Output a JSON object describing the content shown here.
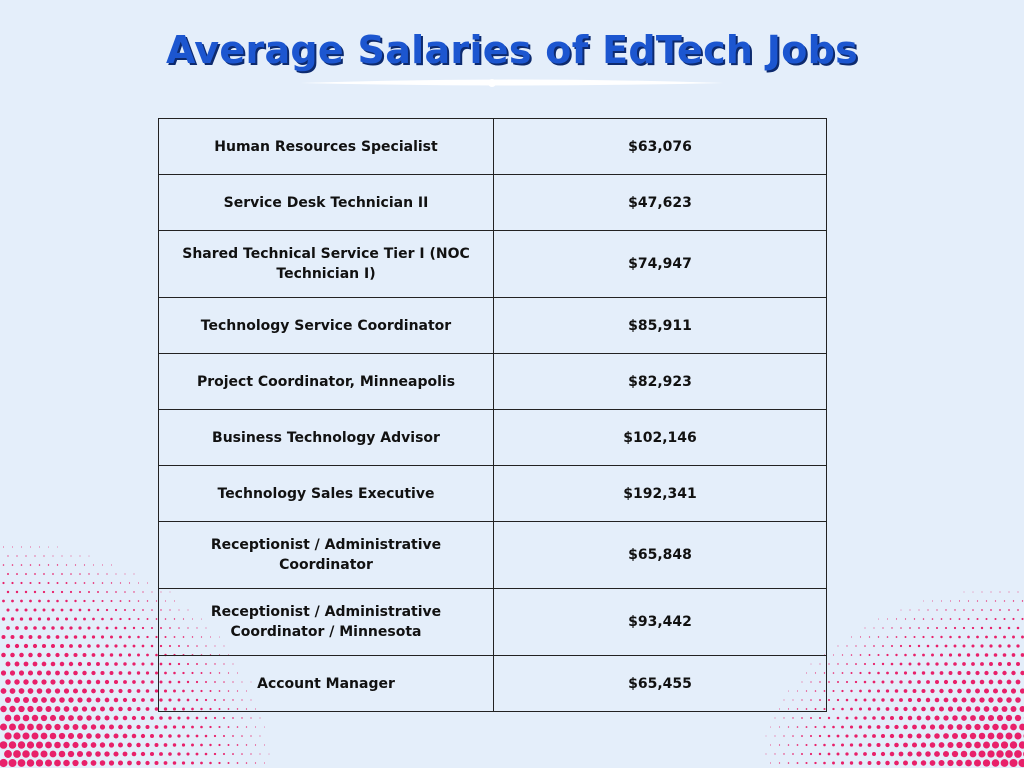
{
  "header": {
    "title": "Average Salaries of EdTech Jobs"
  },
  "table": {
    "rows": [
      [
        "Human Resources Specialist",
        "$63,076"
      ],
      [
        "Service Desk Technician II",
        "$47,623"
      ],
      [
        "Shared Technical Service Tier I (NOC Technician I)",
        "$74,947"
      ],
      [
        "Technology Service Coordinator",
        "$85,911"
      ],
      [
        "Project Coordinator, Minneapolis",
        "$82,923"
      ],
      [
        "Business Technology Advisor",
        "$102,146"
      ],
      [
        "Technology Sales Executive",
        "$192,341"
      ],
      [
        "Receptionist / Administrative Coordinator",
        "$65,848"
      ],
      [
        "Receptionist / Administrative Coordinator / Minnesota",
        "$93,442"
      ],
      [
        "Account Manager",
        "$65,455"
      ]
    ]
  }
}
